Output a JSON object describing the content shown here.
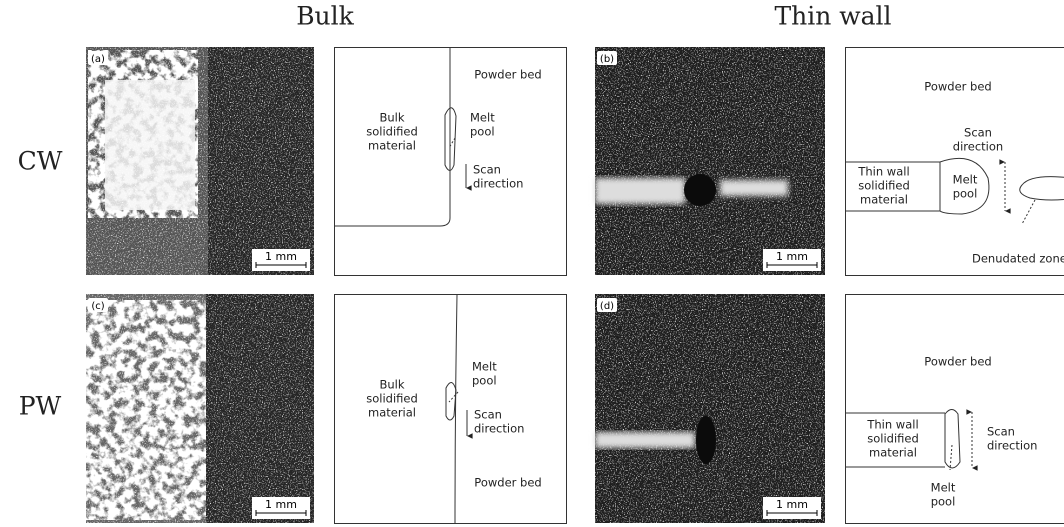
{
  "column_titles": [
    "Bulk",
    "Thin wall"
  ],
  "row_titles": [
    "CW",
    "PW"
  ],
  "panels": [
    {
      "label": "(a)",
      "scale_bar": "1 mm"
    },
    {
      "label": "(b)",
      "scale_bar": "1 mm"
    },
    {
      "label": "(c)",
      "scale_bar": "1 mm"
    },
    {
      "label": "(d)",
      "scale_bar": "1 mm"
    }
  ],
  "diagrams": [
    {
      "powder_bed": "Powder bed",
      "material": [
        "Bulk",
        "solidified",
        "material"
      ],
      "melt_pool": [
        "Melt",
        "pool"
      ],
      "scan_direction": [
        "Scan",
        "direction"
      ]
    },
    {
      "powder_bed": "Powder bed",
      "material": [
        "Thin wall",
        "solidified",
        "material"
      ],
      "melt_pool": [
        "Melt",
        "pool"
      ],
      "scan_direction": [
        "Scan",
        "direction"
      ],
      "denudated_zone": "Denudated zone"
    },
    {
      "powder_bed": "Powder bed",
      "material": [
        "Bulk",
        "solidified",
        "material"
      ],
      "melt_pool": [
        "Melt",
        "pool"
      ],
      "scan_direction": [
        "Scan",
        "direction"
      ]
    },
    {
      "powder_bed": "Powder bed",
      "material": [
        "Thin wall",
        "solidified",
        "material"
      ],
      "melt_pool": [
        "Melt",
        "pool"
      ],
      "scan_direction": [
        "Scan",
        "direction"
      ]
    }
  ]
}
